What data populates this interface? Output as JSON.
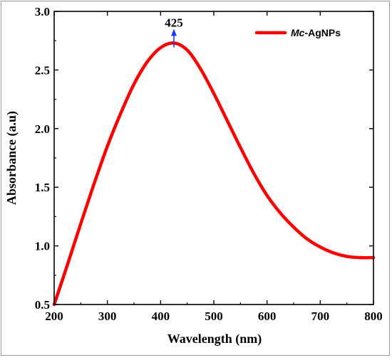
{
  "chart_data": {
    "type": "line",
    "title": "",
    "xlabel": "Wavelength (nm)",
    "ylabel": "Absorbance (a.u)",
    "xlim": [
      200,
      800
    ],
    "ylim": [
      0.5,
      3.0
    ],
    "x_ticks": [
      "200",
      "300",
      "400",
      "500",
      "600",
      "700",
      "800"
    ],
    "y_ticks": [
      "0.5",
      "1.0",
      "1.5",
      "2.0",
      "2.5",
      "3.0"
    ],
    "grid": false,
    "legend": {
      "position": "top-right",
      "prefix": "Mc",
      "suffix": "-AgNPs"
    },
    "series": [
      {
        "name": "Mc-AgNPs",
        "color": "#ff0000",
        "x": [
          200,
          225,
          250,
          275,
          300,
          325,
          350,
          375,
          400,
          425,
          450,
          475,
          500,
          525,
          550,
          575,
          600,
          625,
          650,
          675,
          700,
          725,
          750,
          775,
          800
        ],
        "y": [
          0.5,
          0.84,
          1.19,
          1.53,
          1.85,
          2.13,
          2.38,
          2.57,
          2.69,
          2.73,
          2.67,
          2.51,
          2.3,
          2.07,
          1.84,
          1.62,
          1.43,
          1.28,
          1.16,
          1.06,
          0.99,
          0.94,
          0.91,
          0.9,
          0.9
        ]
      }
    ],
    "annotations": [
      {
        "x": 425,
        "y": 2.73,
        "text": "425",
        "arrow": "up",
        "color": "#1a3cff"
      }
    ]
  }
}
